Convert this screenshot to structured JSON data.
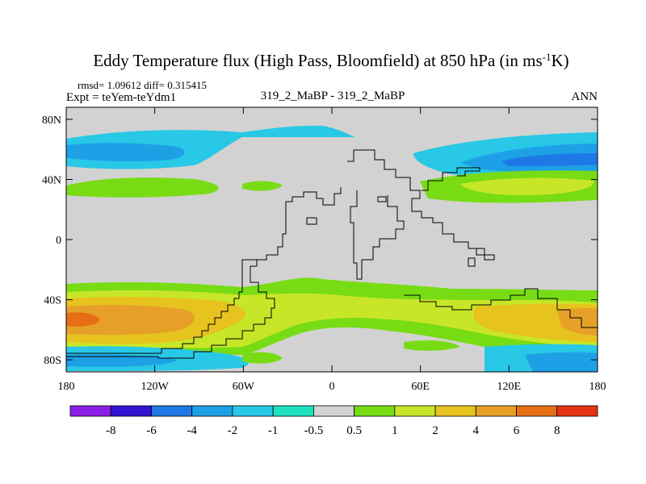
{
  "title_main": "Eddy Temperature flux (High Pass, Bloomfield) at 850 hPa (in ms",
  "title_sup": "-1",
  "title_end": "K)",
  "stats_line": "rmsd= 1.09612 diff= 0.315415",
  "expt_label": "Expt = teYem-teYdm1",
  "center_label": "319_2_MaBP - 319_2_MaBP",
  "season_label": "ANN",
  "chart_data": {
    "type": "filled-contour-map",
    "title": "Eddy Temperature flux (High Pass, Bloomfield) at 850 hPa (in ms-1K)",
    "x_ticks": [
      {
        "lon": -180,
        "label": "180"
      },
      {
        "lon": -120,
        "label": "120W"
      },
      {
        "lon": -60,
        "label": "60W"
      },
      {
        "lon": 0,
        "label": "0"
      },
      {
        "lon": 60,
        "label": "60E"
      },
      {
        "lon": 120,
        "label": "120E"
      },
      {
        "lon": 180,
        "label": "180"
      }
    ],
    "y_ticks": [
      {
        "lat": 80,
        "label": "80N"
      },
      {
        "lat": 40,
        "label": "40N"
      },
      {
        "lat": 0,
        "label": "0"
      },
      {
        "lat": -40,
        "label": "40S"
      },
      {
        "lat": -80,
        "label": "80S"
      }
    ],
    "lon_range": [
      -180,
      180
    ],
    "lat_range": [
      -88,
      88
    ],
    "colorbar": {
      "labels": [
        "-8",
        "-6",
        "-4",
        "-2",
        "-1",
        "-0.5",
        "0.5",
        "1",
        "2",
        "4",
        "6",
        "8"
      ],
      "colors": [
        "#8a1ee6",
        "#3214d2",
        "#1e78e6",
        "#1ea0e6",
        "#28c8e6",
        "#1ee1be",
        "#d2d2d2",
        "#78dc14",
        "#c8e628",
        "#e6c31e",
        "#e6a028",
        "#e66e14",
        "#e63214"
      ]
    }
  }
}
